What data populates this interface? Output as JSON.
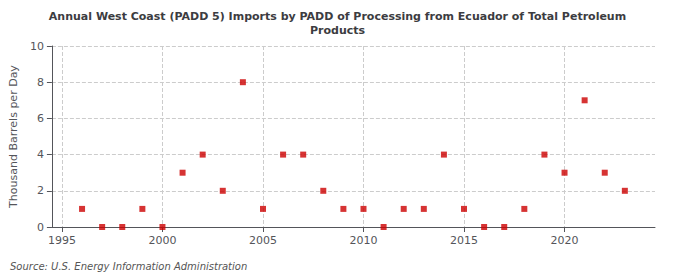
{
  "chart_data": {
    "type": "scatter",
    "title": "Annual West Coast (PADD 5) Imports by PADD of Processing from Ecuador of Total Petroleum\nProducts",
    "ylabel": "Thousand Barrels per Day",
    "annotations": [
      "Source: U.S. Energy Information Administration"
    ],
    "x": [
      1996,
      1997,
      1998,
      1999,
      2000,
      2001,
      2002,
      2003,
      2004,
      2005,
      2006,
      2007,
      2008,
      2009,
      2010,
      2011,
      2012,
      2013,
      2014,
      2015,
      2016,
      2017,
      2018,
      2019,
      2020,
      2021,
      2022,
      2023
    ],
    "values": [
      1,
      0,
      0,
      1,
      0,
      3,
      4,
      2,
      8,
      1,
      4,
      4,
      2,
      1,
      1,
      0,
      1,
      1,
      4,
      1,
      0,
      0,
      1,
      4,
      3,
      7,
      3,
      2
    ],
    "color": "#cc0000",
    "marker": "square",
    "xlim": [
      1994.5,
      2024.5
    ],
    "ylim": [
      0,
      10
    ],
    "xticks": [
      1995,
      2000,
      2005,
      2010,
      2015,
      2020
    ],
    "yticks": [
      0,
      2,
      4,
      6,
      8,
      10
    ],
    "grid": true
  }
}
